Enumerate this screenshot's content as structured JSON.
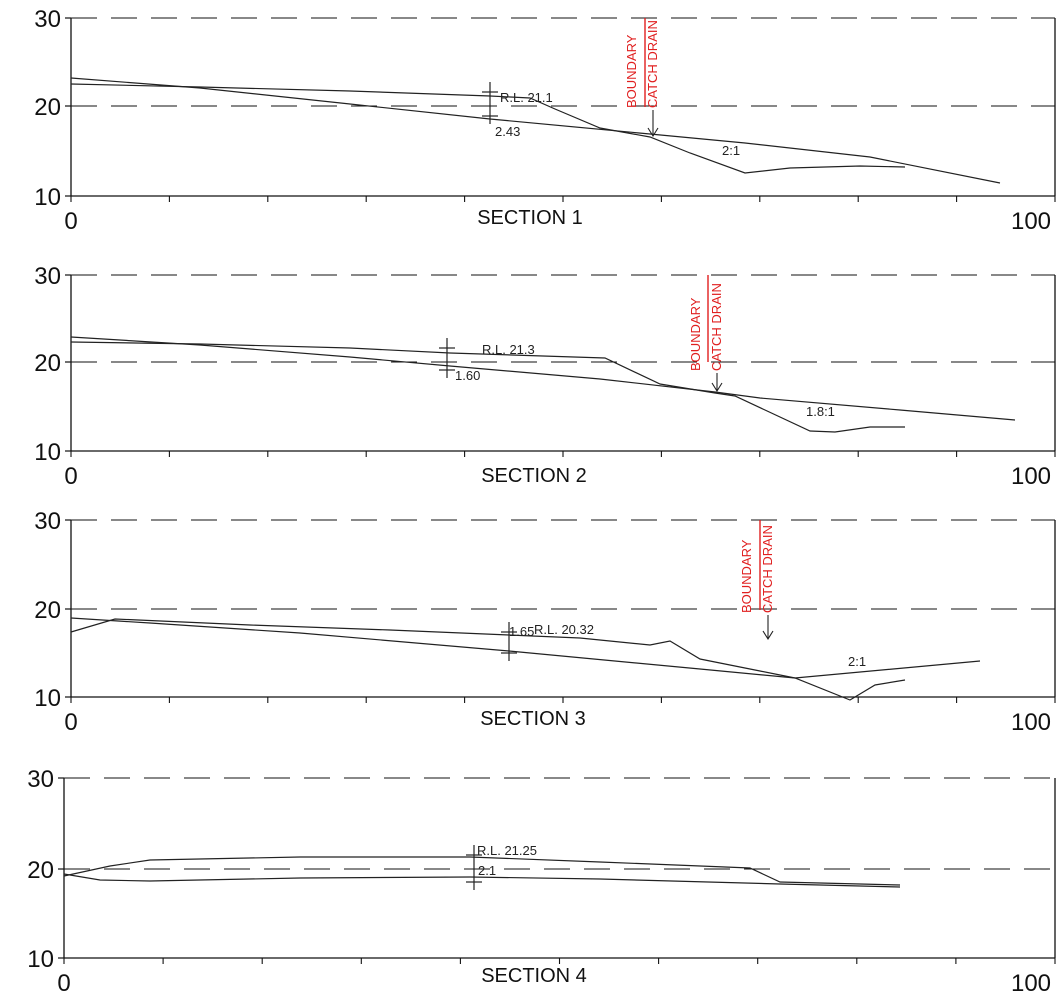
{
  "sections": [
    {
      "title": "SECTION 1",
      "y_ticks": [
        "30",
        "20",
        "10"
      ],
      "x_ticks": [
        "0",
        "100"
      ],
      "rl_label": "R.L. 21.1",
      "depth_label": "2.43",
      "slope_label": "2:1",
      "boundary_label": "BOUNDARY",
      "catch_drain_label": "CATCH DRAIN"
    },
    {
      "title": "SECTION 2",
      "y_ticks": [
        "30",
        "20",
        "10"
      ],
      "x_ticks": [
        "0",
        "100"
      ],
      "rl_label": "R.L. 21.3",
      "depth_label": "1.60",
      "slope_label": "1.8:1",
      "boundary_label": "BOUNDARY",
      "catch_drain_label": "CATCH DRAIN"
    },
    {
      "title": "SECTION 3",
      "y_ticks": [
        "30",
        "20",
        "10"
      ],
      "x_ticks": [
        "0",
        "100"
      ],
      "rl_label": "R.L. 20.32",
      "depth_label": "1.65",
      "slope_label": "2:1",
      "boundary_label": "BOUNDARY",
      "catch_drain_label": "CATCH DRAIN"
    },
    {
      "title": "SECTION 4",
      "y_ticks": [
        "30",
        "20",
        "10"
      ],
      "x_ticks": [
        "0",
        "100"
      ],
      "rl_label": "R.L. 21.25",
      "depth_label": "2.1"
    }
  ],
  "colors": {
    "boundary": "#e02020",
    "line": "#222222",
    "grid": "#111111"
  }
}
